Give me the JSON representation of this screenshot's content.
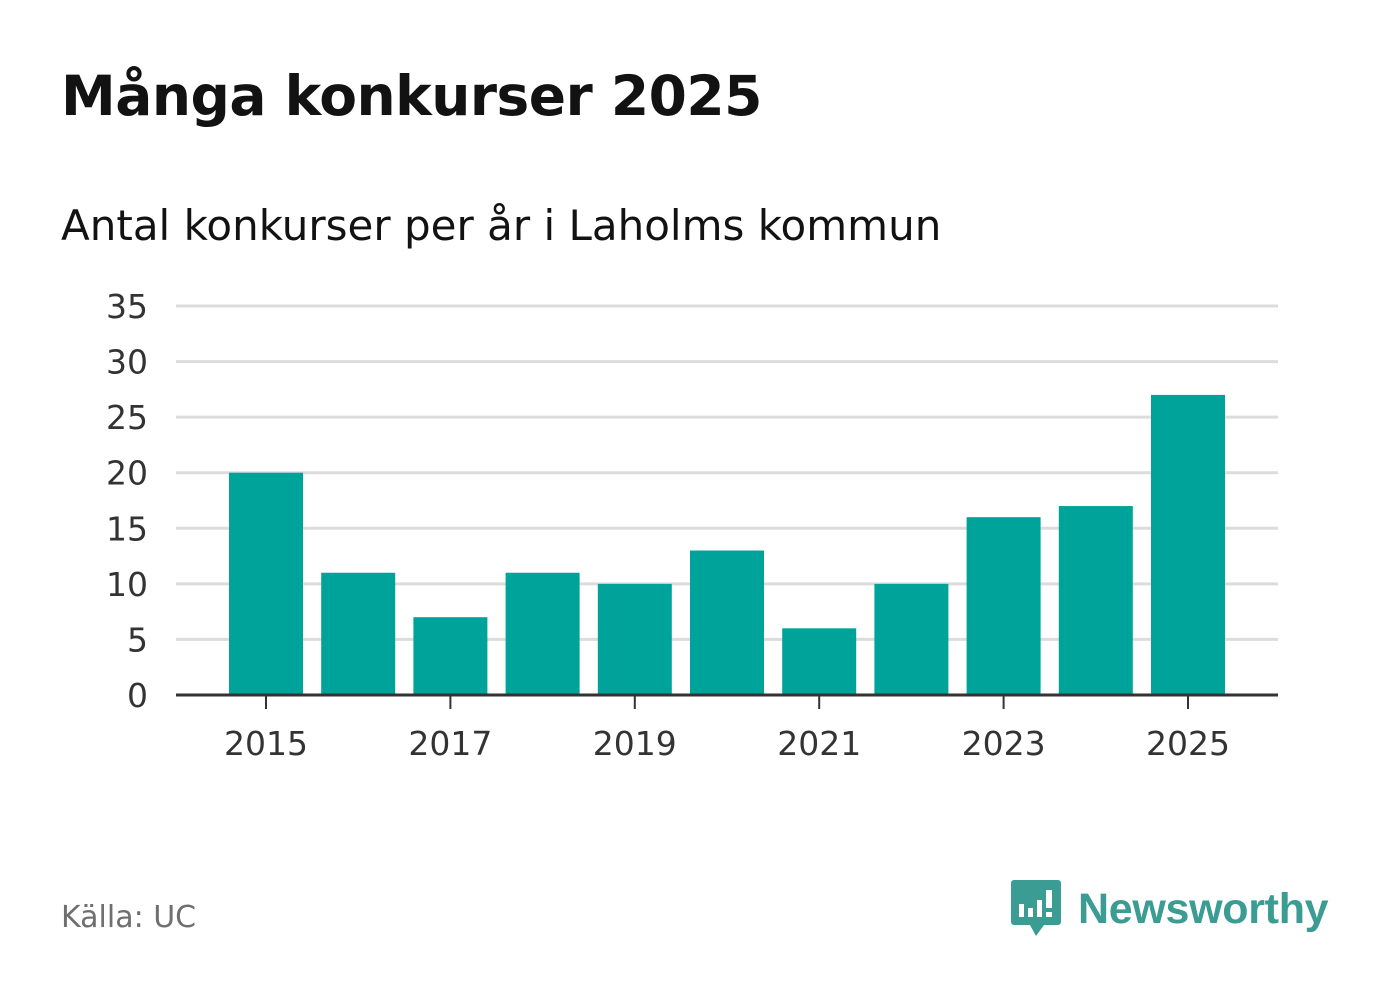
{
  "header": {
    "title": "Många konkurser 2025",
    "subtitle": "Antal konkurser per år i Laholms kommun"
  },
  "footer": {
    "source": "Källa: UC",
    "brand": "Newsworthy"
  },
  "colors": {
    "bar": "#00a39a",
    "grid": "#dcdcdc",
    "axis": "#333333",
    "brand": "#3a9c93"
  },
  "chart_data": {
    "type": "bar",
    "categories": [
      "2015",
      "2016",
      "2017",
      "2018",
      "2019",
      "2020",
      "2021",
      "2022",
      "2023",
      "2024",
      "2025"
    ],
    "values": [
      20,
      11,
      7,
      11,
      10,
      13,
      6,
      10,
      16,
      17,
      27
    ],
    "xtick_labels": [
      "2015",
      "2017",
      "2019",
      "2021",
      "2023",
      "2025"
    ],
    "yticks": [
      0,
      5,
      10,
      15,
      20,
      25,
      30,
      35
    ],
    "ylim": [
      0,
      35
    ],
    "grid": true,
    "legend": "none",
    "xlabel": "",
    "ylabel": ""
  }
}
